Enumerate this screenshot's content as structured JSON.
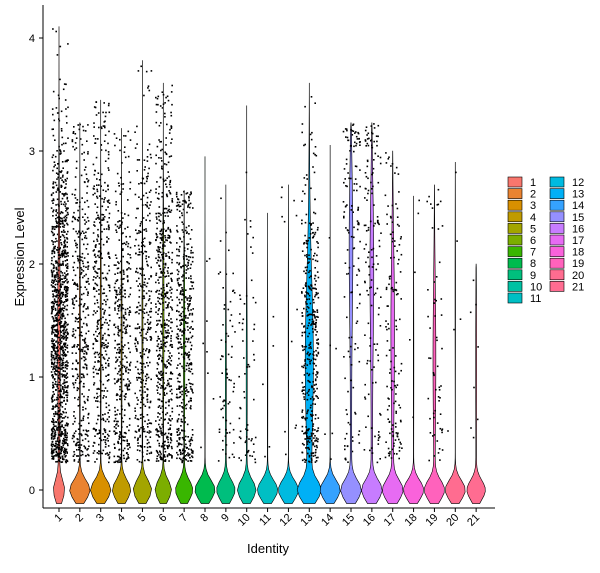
{
  "chart_data": {
    "type": "violin",
    "title": "",
    "xlabel": "Identity",
    "ylabel": "Expression Level",
    "ylim": [
      -0.2,
      4.25
    ],
    "yticks": [
      0,
      1,
      2,
      3,
      4
    ],
    "grid": false,
    "legend_position": "right",
    "legend_columns": 2,
    "x_tick_rotation": 45,
    "categories": [
      "1",
      "2",
      "3",
      "4",
      "5",
      "6",
      "7",
      "8",
      "9",
      "10",
      "11",
      "12",
      "13",
      "14",
      "15",
      "16",
      "17",
      "18",
      "19",
      "20",
      "21"
    ],
    "colors": [
      "#F8766D",
      "#EA8331",
      "#D89000",
      "#C09B00",
      "#A3A500",
      "#7CAE00",
      "#39B600",
      "#00BB4E",
      "#00BF7D",
      "#00C1A3",
      "#00BFC4",
      "#00BAE0",
      "#00B0F6",
      "#35A2FF",
      "#9590FF",
      "#C77CFF",
      "#E76BF3",
      "#FA62DB",
      "#FF62BC",
      "#FF6C90",
      "#FF6C91"
    ],
    "series": [
      {
        "identity": "1",
        "max": 4.1,
        "n_points": 1400,
        "expr_frac": 0.85,
        "zero_width": 0.25,
        "body_width": 0.05,
        "peak_y": 1.4,
        "top_width": 0.03
      },
      {
        "identity": "2",
        "max": 3.25,
        "n_points": 700,
        "expr_frac": 0.55,
        "zero_width": 0.5,
        "body_width": 0.02,
        "peak_y": 1.5,
        "top_width": 0.01
      },
      {
        "identity": "3",
        "max": 3.45,
        "n_points": 750,
        "expr_frac": 0.55,
        "zero_width": 0.5,
        "body_width": 0.02,
        "peak_y": 1.6,
        "top_width": 0.01
      },
      {
        "identity": "4",
        "max": 3.2,
        "n_points": 650,
        "expr_frac": 0.6,
        "zero_width": 0.45,
        "body_width": 0.02,
        "peak_y": 1.4,
        "top_width": 0.01
      },
      {
        "identity": "5",
        "max": 3.8,
        "n_points": 600,
        "expr_frac": 0.6,
        "zero_width": 0.45,
        "body_width": 0.02,
        "peak_y": 1.4,
        "top_width": 0.01
      },
      {
        "identity": "6",
        "max": 3.6,
        "n_points": 900,
        "expr_frac": 0.65,
        "zero_width": 0.4,
        "body_width": 0.03,
        "peak_y": 1.6,
        "top_width": 0.01
      },
      {
        "identity": "7",
        "max": 2.65,
        "n_points": 700,
        "expr_frac": 0.65,
        "zero_width": 0.42,
        "body_width": 0.03,
        "peak_y": 1.3,
        "top_width": 0.01
      },
      {
        "identity": "8",
        "max": 2.95,
        "n_points": 40,
        "expr_frac": 0.2,
        "zero_width": 0.5,
        "body_width": 0.01,
        "peak_y": 1.2,
        "top_width": 0.005
      },
      {
        "identity": "9",
        "max": 2.7,
        "n_points": 200,
        "expr_frac": 0.35,
        "zero_width": 0.45,
        "body_width": 0.02,
        "peak_y": 1.0,
        "top_width": 0.01
      },
      {
        "identity": "10",
        "max": 3.4,
        "n_points": 180,
        "expr_frac": 0.35,
        "zero_width": 0.45,
        "body_width": 0.02,
        "peak_y": 1.0,
        "top_width": 0.01
      },
      {
        "identity": "11",
        "max": 2.45,
        "n_points": 30,
        "expr_frac": 0.15,
        "zero_width": 0.5,
        "body_width": 0.01,
        "peak_y": 1.0,
        "top_width": 0.005
      },
      {
        "identity": "12",
        "max": 2.7,
        "n_points": 60,
        "expr_frac": 0.2,
        "zero_width": 0.5,
        "body_width": 0.01,
        "peak_y": 1.5,
        "top_width": 0.005
      },
      {
        "identity": "13",
        "max": 3.6,
        "n_points": 450,
        "expr_frac": 0.9,
        "zero_width": 0.5,
        "body_width": 0.15,
        "peak_y": 1.2,
        "top_width": 0.08
      },
      {
        "identity": "14",
        "max": 3.05,
        "n_points": 40,
        "expr_frac": 0.15,
        "zero_width": 0.5,
        "body_width": 0.01,
        "peak_y": 1.2,
        "top_width": 0.005
      },
      {
        "identity": "15",
        "max": 3.25,
        "n_points": 250,
        "expr_frac": 0.55,
        "zero_width": 0.48,
        "body_width": 0.08,
        "peak_y": 2.2,
        "top_width": 0.04
      },
      {
        "identity": "16",
        "max": 3.25,
        "n_points": 250,
        "expr_frac": 0.55,
        "zero_width": 0.48,
        "body_width": 0.08,
        "peak_y": 2.0,
        "top_width": 0.04
      },
      {
        "identity": "17",
        "max": 3.0,
        "n_points": 250,
        "expr_frac": 0.55,
        "zero_width": 0.48,
        "body_width": 0.07,
        "peak_y": 1.5,
        "top_width": 0.04
      },
      {
        "identity": "18",
        "max": 2.6,
        "n_points": 30,
        "expr_frac": 0.15,
        "zero_width": 0.5,
        "body_width": 0.01,
        "peak_y": 1.2,
        "top_width": 0.005
      },
      {
        "identity": "19",
        "max": 2.7,
        "n_points": 120,
        "expr_frac": 0.5,
        "zero_width": 0.48,
        "body_width": 0.06,
        "peak_y": 1.2,
        "top_width": 0.02
      },
      {
        "identity": "20",
        "max": 2.9,
        "n_points": 30,
        "expr_frac": 0.15,
        "zero_width": 0.5,
        "body_width": 0.01,
        "peak_y": 1.8,
        "top_width": 0.005
      },
      {
        "identity": "21",
        "max": 2.0,
        "n_points": 25,
        "expr_frac": 0.3,
        "zero_width": 0.45,
        "body_width": 0.02,
        "peak_y": 1.2,
        "top_width": 0.01
      }
    ]
  }
}
